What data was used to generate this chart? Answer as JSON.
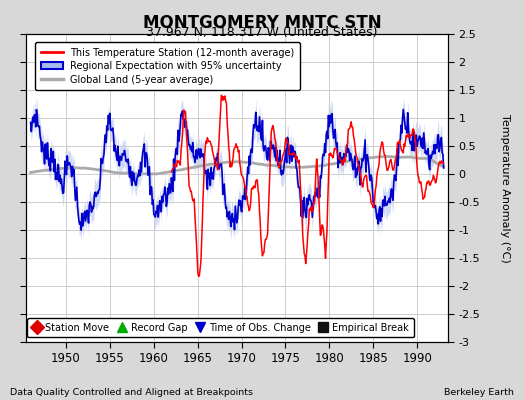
{
  "title": "MONTGOMERY MNTC STN",
  "subtitle": "37.967 N, 118.317 W (United States)",
  "ylabel": "Temperature Anomaly (°C)",
  "xlabel_note": "Data Quality Controlled and Aligned at Breakpoints",
  "credit": "Berkeley Earth",
  "xlim": [
    1945.5,
    1993.5
  ],
  "ylim": [
    -3.0,
    2.5
  ],
  "yticks": [
    -3,
    -2.5,
    -2,
    -1.5,
    -1,
    -0.5,
    0,
    0.5,
    1,
    1.5,
    2,
    2.5
  ],
  "xticks": [
    1950,
    1955,
    1960,
    1965,
    1970,
    1975,
    1980,
    1985,
    1990
  ],
  "bg_color": "#d8d8d8",
  "plot_bg_color": "#ffffff",
  "grid_color": "#cccccc",
  "station_color": "#ff0000",
  "regional_color": "#0000cc",
  "regional_band_color": "#aabbee",
  "global_color": "#aaaaaa",
  "legend_items": [
    {
      "label": "This Temperature Station (12-month average)",
      "color": "#ff0000",
      "lw": 1.5
    },
    {
      "label": "Regional Expectation with 95% uncertainty",
      "color": "#0000cc",
      "lw": 1.5
    },
    {
      "label": "Global Land (5-year average)",
      "color": "#aaaaaa",
      "lw": 2.0
    }
  ],
  "marker_legend": [
    {
      "label": "Station Move",
      "color": "#dd0000",
      "marker": "D"
    },
    {
      "label": "Record Gap",
      "color": "#00aa00",
      "marker": "^"
    },
    {
      "label": "Time of Obs. Change",
      "color": "#0000cc",
      "marker": "v"
    },
    {
      "label": "Empirical Break",
      "color": "#111111",
      "marker": "s"
    }
  ]
}
